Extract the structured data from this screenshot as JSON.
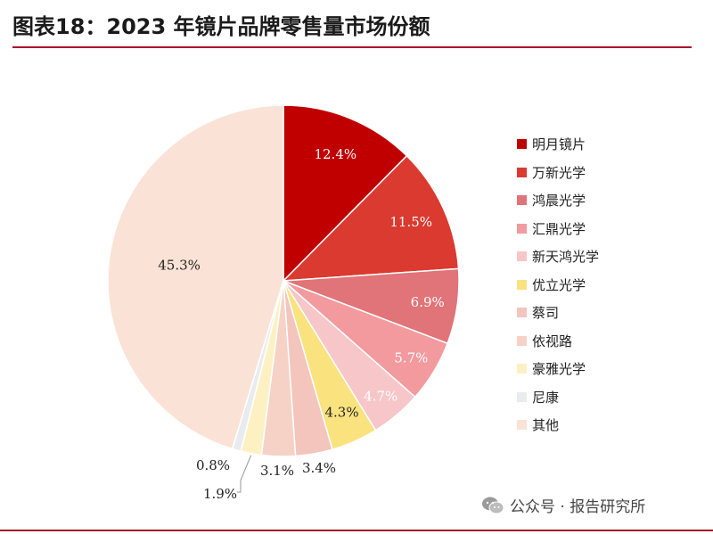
{
  "title": "图表18：2023 年镜片品牌零售量市场份额",
  "watermark": {
    "text": "公众号 · 报告研究所",
    "icon": "wechat-icon"
  },
  "colors": {
    "accent": "#a8102a"
  },
  "chart_data": {
    "type": "pie",
    "title": "图表18：2023 年镜片品牌零售量市场份额",
    "unit": "%",
    "legend_position": "right",
    "slices": [
      {
        "label": "明月镜片",
        "value": 12.4,
        "display": "12.4%",
        "color": "#c00000",
        "text_color": "#ffffff"
      },
      {
        "label": "万新光学",
        "value": 11.5,
        "display": "11.5%",
        "color": "#da3a30",
        "text_color": "#ffffff"
      },
      {
        "label": "鸿晨光学",
        "value": 6.9,
        "display": "6.9%",
        "color": "#e07478",
        "text_color": "#ffffff"
      },
      {
        "label": "汇鼎光学",
        "value": 5.7,
        "display": "5.7%",
        "color": "#f29a9e",
        "text_color": "#ffffff"
      },
      {
        "label": "新天鸿光学",
        "value": 4.7,
        "display": "4.7%",
        "color": "#f7c6c8",
        "text_color": "#ffffff"
      },
      {
        "label": "优立光学",
        "value": 4.3,
        "display": "4.3%",
        "color": "#fae27f",
        "text_color": "#222222"
      },
      {
        "label": "蔡司",
        "value": 3.4,
        "display": "3.4%",
        "color": "#f4c5bd",
        "text_color": "#222222"
      },
      {
        "label": "依视路",
        "value": 3.1,
        "display": "3.1%",
        "color": "#f6d2c6",
        "text_color": "#222222"
      },
      {
        "label": "豪雅光学",
        "value": 1.9,
        "display": "1.9%",
        "color": "#fdf1c4",
        "text_color": "#222222"
      },
      {
        "label": "尼康",
        "value": 0.8,
        "display": "0.8%",
        "color": "#e9ecef",
        "text_color": "#222222"
      },
      {
        "label": "其他",
        "value": 45.3,
        "display": "45.3%",
        "color": "#fae3d6",
        "text_color": "#222222"
      }
    ]
  }
}
